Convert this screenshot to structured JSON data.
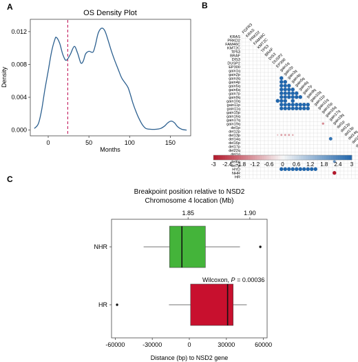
{
  "panels": {
    "A": {
      "letter": "A",
      "chart_data": {
        "type": "line",
        "title": "OS Density Plot",
        "xlabel": "Months",
        "ylabel": "Density",
        "xlim": [
          -22,
          175
        ],
        "ylim": [
          -0.0007,
          0.0135
        ],
        "x_ticks": [
          0,
          50,
          100,
          150
        ],
        "y_ticks": [
          0.0,
          0.004,
          0.008,
          0.012
        ],
        "y_tick_labels": [
          "0.000",
          "0.004",
          "0.008",
          "0.012"
        ],
        "x": [
          -17,
          -12,
          -8,
          -4,
          0,
          4,
          8,
          10,
          14,
          18,
          22,
          27,
          32,
          36,
          40,
          43,
          46,
          50,
          55,
          58,
          61,
          64,
          67,
          70,
          74,
          78,
          82,
          86,
          90,
          94,
          98,
          101,
          104,
          108,
          112,
          116,
          120,
          126,
          132,
          138,
          143,
          147,
          151,
          155,
          159,
          164,
          170
        ],
        "y": [
          0.0002,
          0.0008,
          0.0025,
          0.005,
          0.0072,
          0.0095,
          0.011,
          0.0113,
          0.0106,
          0.0092,
          0.0085,
          0.0092,
          0.0102,
          0.0094,
          0.0082,
          0.0084,
          0.0093,
          0.0096,
          0.0095,
          0.0104,
          0.0117,
          0.0123,
          0.0124,
          0.012,
          0.0108,
          0.0095,
          0.0084,
          0.0074,
          0.0064,
          0.0058,
          0.0052,
          0.0043,
          0.0033,
          0.0022,
          0.0013,
          0.0006,
          0.0002,
          0.0001,
          0.0001,
          0.0002,
          0.0005,
          0.0009,
          0.0011,
          0.0009,
          0.0004,
          0.0001,
          0.0
        ],
        "vline_x": 24,
        "colors": {
          "line": "#2b5f8f",
          "vline": "#c2185b"
        }
      }
    },
    "B": {
      "letter": "B",
      "chart_data": {
        "type": "heatmap",
        "rows": [
          "KRAS",
          "PRKD2",
          "FAM46C",
          "KMT2C",
          "TP53",
          "BRAF",
          "DIS3",
          "DUSP2",
          "EP300",
          "gain1q",
          "gain2p",
          "gain3q",
          "gain4p",
          "gain5q",
          "gain6q",
          "gain7p",
          "gain9q",
          "gain10q",
          "gain11p",
          "gain11q",
          "gain15p",
          "gain16q",
          "gain17q",
          "gain19q",
          "del1p",
          "del12p",
          "del13p",
          "del14q",
          "del16p",
          "del17p",
          "del22q",
          "del1q",
          "del3p",
          "del6p",
          "del7p",
          "HYD",
          "NHR",
          "HR"
        ],
        "columns": [
          "FGFR3",
          "KRAS",
          "PRKD2",
          "FAM46C",
          "KMT2C",
          "TP53",
          "BRAF",
          "DIS3",
          "DUSP2",
          "EP300",
          "gain1q",
          "gain2p",
          "gain3q",
          "gain4p",
          "gain5q",
          "gain6q",
          "gain7p",
          "gain9q",
          "gain10q",
          "gain11p",
          "gain11q",
          "gain15p",
          "gain16q",
          "gain17q",
          "gain19q",
          "del1p",
          "del12p",
          "del13p",
          "del14q",
          "del16p",
          "del17p",
          "del22q",
          "del1q",
          "del3p",
          "del6p",
          "del7p",
          "HYD",
          "NHR"
        ],
        "values": [
          [
            11,
            10,
            3.0
          ],
          [
            12,
            10,
            3.0
          ],
          [
            12,
            11,
            3.0
          ],
          [
            13,
            10,
            3.0
          ],
          [
            13,
            11,
            3.0
          ],
          [
            13,
            12,
            3.0
          ],
          [
            14,
            10,
            3.0
          ],
          [
            14,
            11,
            3.0
          ],
          [
            14,
            12,
            3.0
          ],
          [
            14,
            13,
            3.0
          ],
          [
            15,
            10,
            3.0
          ],
          [
            15,
            11,
            3.0
          ],
          [
            15,
            12,
            3.0
          ],
          [
            15,
            13,
            3.0
          ],
          [
            15,
            14,
            3.0
          ],
          [
            16,
            10,
            3.0
          ],
          [
            16,
            11,
            3.0
          ],
          [
            16,
            12,
            3.0
          ],
          [
            16,
            13,
            3.0
          ],
          [
            16,
            14,
            3.0
          ],
          [
            16,
            15,
            3.0
          ],
          [
            17,
            9,
            3.0
          ],
          [
            17,
            10,
            3.0
          ],
          [
            17,
            11,
            3.0
          ],
          [
            17,
            13,
            3.0
          ],
          [
            18,
            10,
            3.0
          ],
          [
            18,
            11,
            3.0
          ],
          [
            18,
            12,
            3.0
          ],
          [
            18,
            13,
            3.0
          ],
          [
            18,
            14,
            3.0
          ],
          [
            18,
            15,
            3.0
          ],
          [
            18,
            16,
            3.0
          ],
          [
            18,
            17,
            3.0
          ],
          [
            19,
            10,
            3.0
          ],
          [
            19,
            11,
            3.0
          ],
          [
            19,
            12,
            3.0
          ],
          [
            19,
            13,
            3.0
          ],
          [
            19,
            14,
            3.0
          ],
          [
            19,
            15,
            3.0
          ],
          [
            19,
            16,
            3.0
          ],
          [
            19,
            17,
            3.0
          ],
          [
            23,
            21,
            -1.5
          ],
          [
            26,
            9,
            -0.8
          ],
          [
            26,
            10,
            -1.2
          ],
          [
            26,
            11,
            -1.2
          ],
          [
            26,
            12,
            -1.2
          ],
          [
            26,
            13,
            -1.0
          ],
          [
            27,
            23,
            2.7
          ],
          [
            33,
            24,
            2.0
          ],
          [
            35,
            10,
            3.0
          ],
          [
            35,
            11,
            3.0
          ],
          [
            35,
            12,
            3.0
          ],
          [
            35,
            13,
            3.0
          ],
          [
            35,
            14,
            3.0
          ],
          [
            35,
            15,
            3.0
          ],
          [
            35,
            16,
            3.0
          ],
          [
            35,
            17,
            3.0
          ],
          [
            35,
            18,
            3.0
          ],
          [
            35,
            19,
            3.0
          ],
          [
            36,
            24,
            -3.0
          ]
        ],
        "legend": {
          "min": -3,
          "max": 3,
          "ticks": [
            -3,
            -2.4,
            -1.8,
            -1.2,
            -0.6,
            0,
            0.6,
            1.2,
            1.8,
            2.4,
            3
          ],
          "tick_labels": [
            "-3",
            "-2.4",
            "-1.8",
            "-1.2",
            "-0.6",
            "0",
            "0.6",
            "1.2",
            "1.8",
            "2.4",
            "3"
          ]
        },
        "colors": {
          "negative": "#b2182b",
          "neutral": "#f7f7f7",
          "positive": "#2166ac",
          "grid": "#d8d8d8"
        }
      }
    },
    "C": {
      "letter": "C",
      "chart_data": {
        "type": "box",
        "title": "Breakpoint position relative to NSD2",
        "subtitle": "Chromosome 4 location (Mb)",
        "xlabel": "Distance (bp) to NSD2 gene",
        "xlim": [
          -63000,
          63000
        ],
        "x_ticks": [
          -60000,
          -30000,
          0,
          30000,
          60000
        ],
        "x_tick_labels": [
          "-60000",
          "-30000",
          "0",
          "30000",
          "60000"
        ],
        "top_ticks_offset": [
          -1000,
          49000
        ],
        "top_tick_labels": [
          "1.85",
          "1.90"
        ],
        "categories": [
          "NHR",
          "HR"
        ],
        "boxes": [
          {
            "name": "NHR",
            "whisker_low": -37000,
            "q1": -16000,
            "median": -6000,
            "q3": 13000,
            "whisker_high": 41000,
            "outliers": [
              57500
            ],
            "color": "#44b43a"
          },
          {
            "name": "HR",
            "whisker_low": -16500,
            "q1": 1000,
            "median": 31000,
            "q3": 35500,
            "whisker_high": 46500,
            "outliers": [
              -58500
            ],
            "color": "#c8102e"
          }
        ],
        "annotation": {
          "prefix": "Wilcoxon,",
          "p_label": "P",
          "p_value": "= 0.00036"
        }
      }
    }
  }
}
